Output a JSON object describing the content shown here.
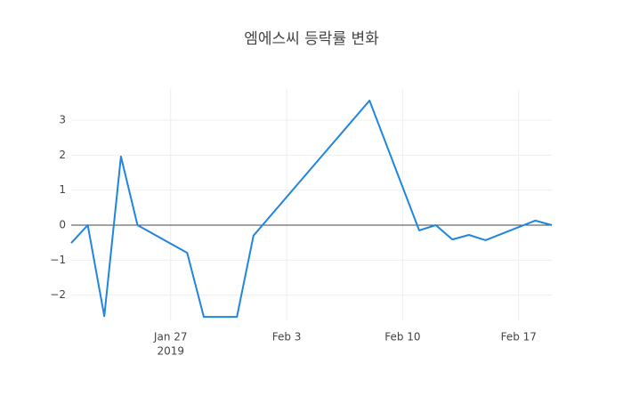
{
  "chart_data": {
    "type": "line",
    "title": "엠에스씨 등락률 변화",
    "x": [
      "2019-01-21",
      "2019-01-22",
      "2019-01-23",
      "2019-01-24",
      "2019-01-25",
      "2019-01-28",
      "2019-01-29",
      "2019-01-31",
      "2019-02-01",
      "2019-02-08",
      "2019-02-11",
      "2019-02-12",
      "2019-02-13",
      "2019-02-14",
      "2019-02-15",
      "2019-02-18",
      "2019-02-19"
    ],
    "series": [
      {
        "color": "#1f85de",
        "values": [
          -0.51,
          0,
          -2.6,
          1.96,
          0,
          -0.79,
          -2.62,
          -2.62,
          -0.3,
          3.56,
          -0.15,
          0,
          -0.41,
          -0.28,
          -0.43,
          0.13,
          0
        ]
      }
    ],
    "xlim": [
      "2019-01-21",
      "2019-02-19"
    ],
    "xticks": [
      {
        "value": "2019-01-27",
        "label": "Jan 27",
        "sublabel": "2019"
      },
      {
        "value": "2019-02-03",
        "label": "Feb 3"
      },
      {
        "value": "2019-02-10",
        "label": "Feb 10"
      },
      {
        "value": "2019-02-17",
        "label": "Feb 17"
      }
    ],
    "ylim": [
      -2.72,
      3.89
    ],
    "yticks": [
      {
        "value": -2,
        "label": "−2"
      },
      {
        "value": -1,
        "label": "−1"
      },
      0,
      1,
      2,
      3
    ],
    "grid": true
  }
}
